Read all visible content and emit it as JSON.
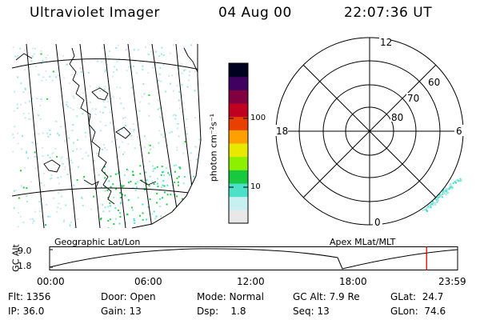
{
  "header": {
    "title": "Ultraviolet Imager",
    "date": "04 Aug 00",
    "time": "22:07:36 UT"
  },
  "colorbar": {
    "unit_label": "photon cm⁻²s⁻¹",
    "tick_100": "100",
    "tick_10": "10",
    "colors": [
      "#e8e8e8",
      "#c8f0f0",
      "#4de0c8",
      "#18c840",
      "#8cf000",
      "#e8e800",
      "#ffa000",
      "#e84000",
      "#c00020",
      "#800040",
      "#400060",
      "#000020"
    ]
  },
  "geo_map": {
    "label": "Geographic Lat/Lon"
  },
  "polar_plot": {
    "label": "Apex MLat/MLT",
    "mlt_12": "12",
    "mlt_18": "18",
    "mlt_6": "6",
    "mlt_0": "0",
    "lat_60": "60",
    "lat_70": "70",
    "lat_80": "80"
  },
  "altitude_strip": {
    "axis_title": "GC Alt",
    "y_top": "9.0",
    "y_bottom": "1.8",
    "time_ticks": [
      "00:00",
      "06:00",
      "12:00",
      "18:00",
      "23:59"
    ],
    "current_time_fraction": 0.924
  },
  "status": {
    "flt": "Flt: 1356",
    "ip": "IP: 36.0",
    "door": "Door: Open",
    "gain": "Gain: 13",
    "mode": "Mode: Normal",
    "dsp": "Dsp:    1.8",
    "gc_alt": "GC Alt: 7.9 Re",
    "seq": "Seq: 13",
    "glat": "GLat:  24.7",
    "glon": "GLon:  74.6"
  }
}
